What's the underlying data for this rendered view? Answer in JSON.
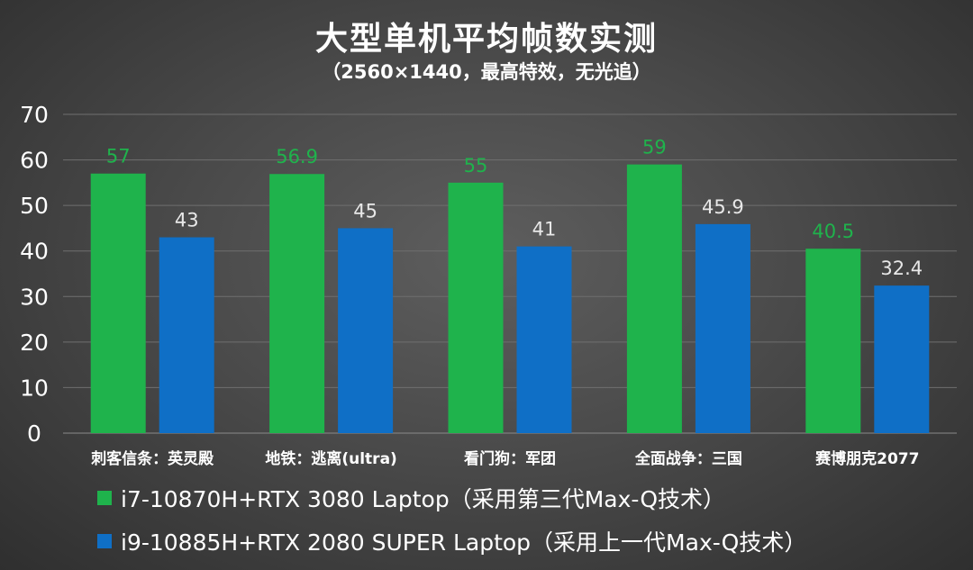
{
  "chart_data": {
    "type": "bar",
    "title": "大型单机平均帧数实测",
    "subtitle": "（2560×1440，最高特效，无光追）",
    "categories": [
      "刺客信条：英灵殿",
      "地铁：逃离(ultra)",
      "看门狗：军团",
      "全面战争：三国",
      "赛博朋克2077"
    ],
    "series": [
      {
        "name": "i7-10870H+RTX 3080 Laptop（采用第三代Max-Q技术）",
        "values": [
          57,
          56.9,
          55,
          59,
          40.5
        ],
        "labels": [
          "57",
          "56.9",
          "55",
          "59",
          "40.5"
        ],
        "color": "#1fb34c",
        "label_color": "#1fb34c"
      },
      {
        "name": "i9-10885H+RTX 2080 SUPER Laptop（采用上一代Max-Q技术）",
        "values": [
          43,
          45,
          41,
          45.9,
          32.4
        ],
        "labels": [
          "43",
          "45",
          "41",
          "45.9",
          "32.4"
        ],
        "color": "#0f6fc6",
        "label_color": "#e8e8e8"
      }
    ],
    "ylim": [
      0,
      70
    ],
    "yticks": [
      "0",
      "10",
      "20",
      "30",
      "40",
      "50",
      "60",
      "70"
    ],
    "grid": true,
    "legend_position": "bottom-left"
  }
}
